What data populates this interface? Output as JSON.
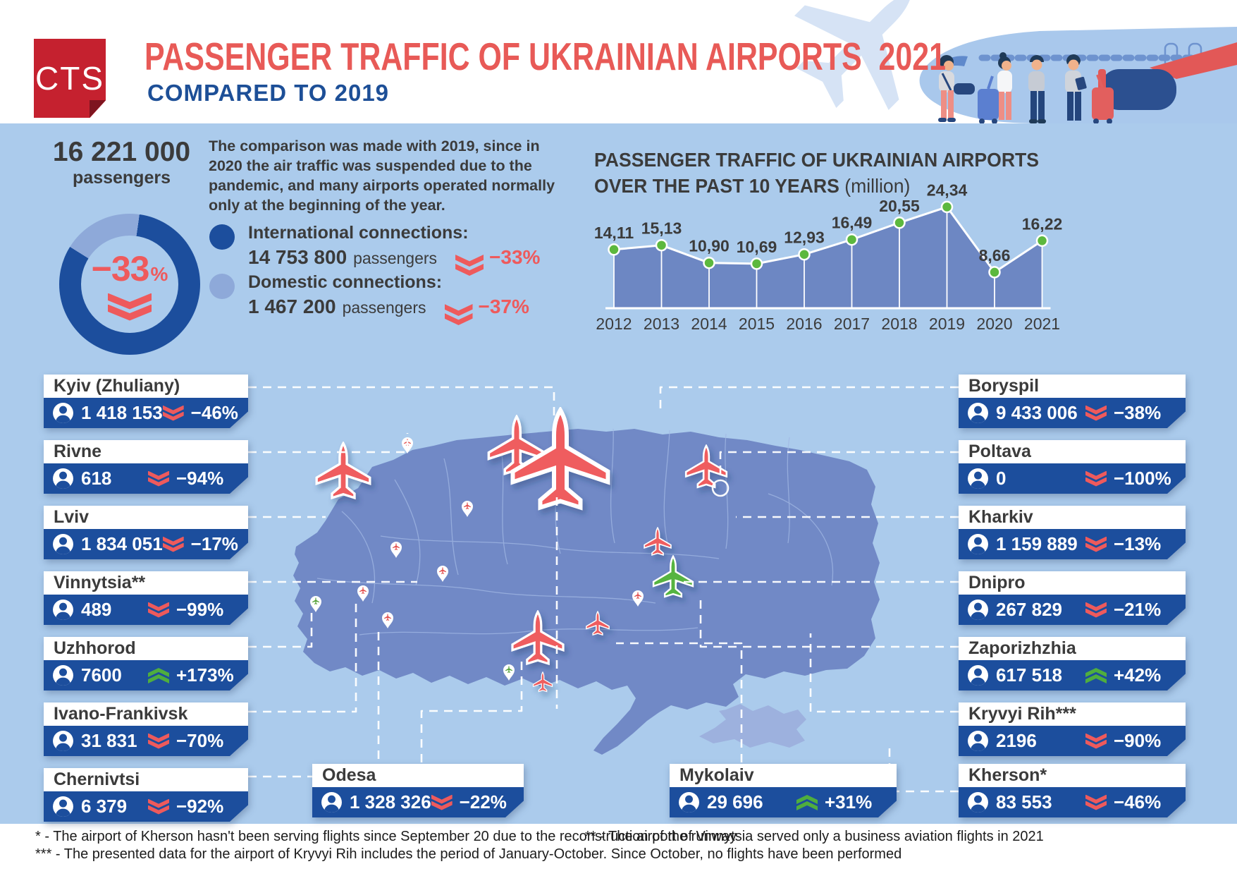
{
  "header": {
    "logo": "CTS",
    "title": "PASSENGER TRAFFIC OF UKRAINIAN AIRPORTS  2021",
    "subtitle": "COMPARED TO 2019"
  },
  "summary": {
    "total": "16 221 000",
    "total_unit": "passengers",
    "total_change": "−33",
    "percent_sign": "%",
    "note": "The comparison was made with 2019, since in 2020 the air traffic was suspended due to the pandemic, and many airports operated normally only at the beginning of the year.",
    "international": {
      "label": "International connections:",
      "value": "14 753 800",
      "unit": "passengers",
      "change": "−33%"
    },
    "domestic": {
      "label": "Domestic connections:",
      "value": "1 467 200",
      "unit": "passengers",
      "change": "−37%"
    }
  },
  "chart_data": {
    "type": "area",
    "title": "PASSENGER TRAFFIC OF UKRAINIAN AIRPORTS",
    "title_line2": "OVER THE PAST 10 YEARS ",
    "unit_label": "(million)",
    "categories": [
      "2012",
      "2013",
      "2014",
      "2015",
      "2016",
      "2017",
      "2018",
      "2019",
      "2020",
      "2021"
    ],
    "values": [
      14.11,
      15.13,
      10.9,
      10.69,
      12.93,
      16.49,
      20.55,
      24.34,
      8.66,
      16.22
    ],
    "labels": [
      "14,11",
      "15,13",
      "10,90",
      "10,69",
      "12,93",
      "16,49",
      "20,55",
      "24,34",
      "8,66",
      "16,22"
    ],
    "ylim": [
      0,
      27
    ],
    "grid": false,
    "legend": "none",
    "line_color": "#ffffff",
    "dot_color": "#5cb83e",
    "area_color": "#6d87c3"
  },
  "airports": {
    "left": [
      {
        "name": "Kyiv (Zhuliany)",
        "value": "1 418 153",
        "change": "−46%",
        "dir": "down"
      },
      {
        "name": "Rivne",
        "value": "618",
        "change": "−94%",
        "dir": "down"
      },
      {
        "name": "Lviv",
        "value": "1 834 051",
        "change": "−17%",
        "dir": "down"
      },
      {
        "name": "Vinnytsia**",
        "value": "489",
        "change": "−99%",
        "dir": "down"
      },
      {
        "name": "Uzhhorod",
        "value": "7600",
        "change": "+173%",
        "dir": "up"
      },
      {
        "name": "Ivano-Frankivsk",
        "value": "31 831",
        "change": "−70%",
        "dir": "down"
      },
      {
        "name": "Chernivtsi",
        "value": "6 379",
        "change": "−92%",
        "dir": "down"
      }
    ],
    "right": [
      {
        "name": "Boryspil",
        "value": "9 433 006",
        "change": "−38%",
        "dir": "down"
      },
      {
        "name": "Poltava",
        "value": "0",
        "change": "−100%",
        "dir": "down"
      },
      {
        "name": "Kharkiv",
        "value": "1 159 889",
        "change": "−13%",
        "dir": "down"
      },
      {
        "name": "Dnipro",
        "value": "267 829",
        "change": "−21%",
        "dir": "down"
      },
      {
        "name": "Zaporizhzhia",
        "value": "617 518",
        "change": "+42%",
        "dir": "up"
      },
      {
        "name": "Kryvyi Rih***",
        "value": "2196",
        "change": "−90%",
        "dir": "down"
      }
    ],
    "bottom": [
      {
        "name": "Odesa",
        "value": "1 328 326",
        "change": "−22%",
        "dir": "down"
      },
      {
        "name": "Mykolaiv",
        "value": "29 696",
        "change": "+31%",
        "dir": "up"
      },
      {
        "name": "Kherson*",
        "value": "83 553",
        "change": "−46%",
        "dir": "down"
      }
    ]
  },
  "footnotes": {
    "note1": "* - The airport of Kherson hasn't been serving flights since September 20 due to the reconstruction of the runway",
    "note2": "** - The airport of Vinnytsia served only a business aviation flights in 2021",
    "note3": "*** - The presented data for the airport of Kryvyi Rih includes the period of January-October. Since October, no flights have been performed"
  },
  "colors": {
    "navy": "#1c4e9d",
    "red": "#ee5a5c",
    "green": "#4fae3e",
    "background": "#abcbec",
    "dark_text": "#3b3b3b",
    "domestic": "#8ea9d9",
    "map": "#7189c6",
    "title_red": "#e85a57",
    "title_blue": "#1d4f97"
  }
}
